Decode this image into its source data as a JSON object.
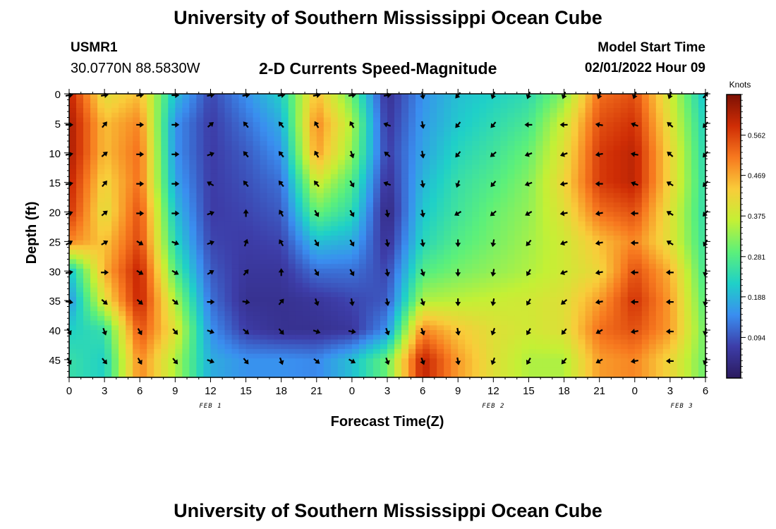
{
  "header": {
    "title": "University of Southern Mississippi Ocean Cube",
    "station_id": "USMR1",
    "station_coords": "30.0770N  88.5830W",
    "chart_title": "2-D Currents Speed-Magnitude",
    "model_start_label": "Model Start Time",
    "model_start_value": "02/01/2022 Hour 09"
  },
  "footer": {
    "title": "University of Southern Mississippi Ocean Cube"
  },
  "colors": {
    "scale": [
      "#2b1a5e",
      "#3d3da8",
      "#3a8ef0",
      "#1fd0c8",
      "#5cf07a",
      "#c4f035",
      "#f9cc3a",
      "#f7791f",
      "#cf2d05",
      "#7c1004"
    ]
  },
  "chart_data": {
    "type": "heatmap",
    "title": "2-D Currents Speed-Magnitude",
    "xlabel": "Forecast Time(Z)",
    "ylabel": "Depth (ft)",
    "x_tick_labels": [
      "0",
      "3",
      "6",
      "9",
      "12",
      "15",
      "18",
      "21",
      "0",
      "3",
      "6",
      "9",
      "12",
      "15",
      "18",
      "21",
      "0",
      "3",
      "6"
    ],
    "x_hours": [
      0,
      3,
      6,
      9,
      12,
      15,
      18,
      21,
      24,
      27,
      30,
      33,
      36,
      39,
      42,
      45,
      48,
      51,
      54
    ],
    "xlim": [
      0,
      54
    ],
    "y_tick_labels": [
      "0",
      "5",
      "10",
      "15",
      "20",
      "25",
      "30",
      "35",
      "40",
      "45"
    ],
    "depths": [
      0,
      5,
      10,
      15,
      20,
      25,
      30,
      35,
      40,
      45
    ],
    "ylim": [
      0,
      48
    ],
    "date_labels": [
      {
        "text": "FEB 1",
        "hour": 12
      },
      {
        "text": "FEB 2",
        "hour": 36
      },
      {
        "text": "FEB 3",
        "hour": 52
      }
    ],
    "colorbar": {
      "unit": "Knots",
      "min": 0.0,
      "max": 0.656,
      "ticks": [
        "0.094",
        "0.188",
        "0.281",
        "0.375",
        "0.469",
        "0.562"
      ]
    },
    "speed_grid": [
      [
        0.6,
        0.4,
        0.45,
        0.2,
        0.08,
        0.15,
        0.22,
        0.45,
        0.3,
        0.05,
        0.15,
        0.2,
        0.22,
        0.24,
        0.32,
        0.52,
        0.55,
        0.38,
        0.2
      ],
      [
        0.62,
        0.45,
        0.5,
        0.15,
        0.07,
        0.12,
        0.18,
        0.5,
        0.35,
        0.06,
        0.16,
        0.21,
        0.24,
        0.27,
        0.38,
        0.55,
        0.58,
        0.4,
        0.22
      ],
      [
        0.62,
        0.45,
        0.52,
        0.15,
        0.07,
        0.1,
        0.15,
        0.48,
        0.33,
        0.07,
        0.17,
        0.23,
        0.26,
        0.3,
        0.4,
        0.57,
        0.6,
        0.42,
        0.23
      ],
      [
        0.6,
        0.42,
        0.52,
        0.17,
        0.07,
        0.09,
        0.12,
        0.38,
        0.28,
        0.05,
        0.19,
        0.25,
        0.28,
        0.32,
        0.42,
        0.57,
        0.6,
        0.42,
        0.24
      ],
      [
        0.58,
        0.4,
        0.55,
        0.2,
        0.07,
        0.08,
        0.1,
        0.3,
        0.24,
        0.03,
        0.21,
        0.26,
        0.3,
        0.33,
        0.4,
        0.52,
        0.55,
        0.4,
        0.24
      ],
      [
        0.5,
        0.44,
        0.56,
        0.23,
        0.08,
        0.07,
        0.08,
        0.2,
        0.18,
        0.05,
        0.23,
        0.28,
        0.31,
        0.34,
        0.38,
        0.45,
        0.5,
        0.4,
        0.25
      ],
      [
        0.2,
        0.46,
        0.6,
        0.28,
        0.1,
        0.06,
        0.06,
        0.12,
        0.12,
        0.08,
        0.28,
        0.31,
        0.33,
        0.35,
        0.38,
        0.42,
        0.55,
        0.46,
        0.26
      ],
      [
        0.15,
        0.4,
        0.6,
        0.35,
        0.12,
        0.05,
        0.05,
        0.06,
        0.08,
        0.1,
        0.35,
        0.36,
        0.37,
        0.38,
        0.4,
        0.48,
        0.58,
        0.48,
        0.28
      ],
      [
        0.22,
        0.25,
        0.55,
        0.4,
        0.15,
        0.07,
        0.05,
        0.05,
        0.06,
        0.15,
        0.5,
        0.44,
        0.4,
        0.38,
        0.4,
        0.52,
        0.55,
        0.48,
        0.3
      ],
      [
        0.25,
        0.22,
        0.5,
        0.35,
        0.18,
        0.15,
        0.15,
        0.14,
        0.2,
        0.3,
        0.6,
        0.48,
        0.4,
        0.35,
        0.35,
        0.48,
        0.5,
        0.42,
        0.3
      ]
    ],
    "vectors_deg": [
      [
        80,
        80,
        80,
        90,
        80,
        80,
        80,
        80,
        80,
        80,
        170,
        220,
        200,
        200,
        200,
        200,
        200,
        200,
        40
      ],
      [
        90,
        40,
        90,
        90,
        50,
        320,
        320,
        330,
        330,
        290,
        170,
        220,
        220,
        270,
        270,
        280,
        290,
        310,
        220
      ],
      [
        80,
        50,
        90,
        90,
        70,
        320,
        320,
        330,
        160,
        310,
        170,
        220,
        230,
        250,
        250,
        260,
        280,
        310,
        220
      ],
      [
        80,
        40,
        90,
        90,
        300,
        320,
        320,
        320,
        150,
        290,
        170,
        200,
        220,
        250,
        260,
        270,
        290,
        300,
        220
      ],
      [
        70,
        50,
        90,
        90,
        70,
        0,
        330,
        150,
        150,
        170,
        170,
        240,
        230,
        240,
        260,
        260,
        270,
        300,
        220
      ],
      [
        60,
        60,
        120,
        110,
        70,
        20,
        330,
        150,
        150,
        170,
        170,
        180,
        190,
        220,
        250,
        260,
        270,
        300,
        210
      ],
      [
        80,
        90,
        120,
        120,
        60,
        40,
        0,
        150,
        150,
        170,
        160,
        180,
        190,
        210,
        250,
        260,
        270,
        270,
        190
      ],
      [
        100,
        130,
        130,
        130,
        90,
        100,
        40,
        160,
        170,
        170,
        160,
        180,
        190,
        210,
        230,
        260,
        270,
        270,
        190
      ],
      [
        150,
        160,
        150,
        140,
        110,
        130,
        140,
        110,
        100,
        160,
        160,
        170,
        200,
        210,
        220,
        240,
        260,
        270,
        190
      ],
      [
        150,
        140,
        150,
        140,
        110,
        140,
        160,
        130,
        120,
        160,
        160,
        170,
        200,
        210,
        220,
        240,
        260,
        270,
        200
      ]
    ]
  }
}
